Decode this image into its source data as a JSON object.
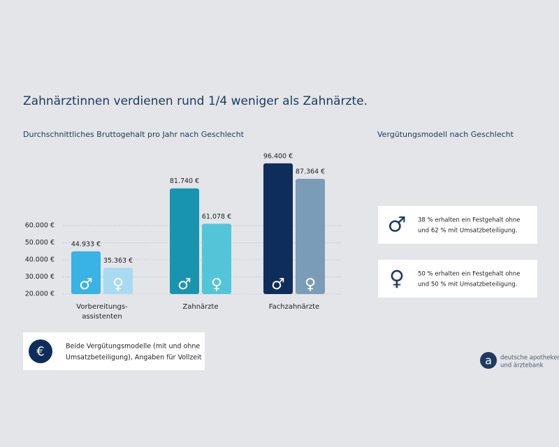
{
  "chart_data": {
    "type": "bar",
    "title": "Zahnärztinnen verdienen rund 1/4 weniger als Zahnärzte.",
    "subtitle": "Durchschnittliches Bruttogehalt pro Jahr nach Geschlecht",
    "categories": [
      "Vorbereitungs-\nassistenten",
      "Zahnärzte",
      "Fachzahnärzte"
    ],
    "series": [
      {
        "name": "♂",
        "colors": [
          "#39b2e6",
          "#1894b0",
          "#0f2d5a"
        ],
        "values": [
          44933,
          81740,
          96400
        ],
        "value_labels": [
          "44.933 €",
          "81.740 €",
          "96.400 €"
        ]
      },
      {
        "name": "♀",
        "colors": [
          "#a8dbf2",
          "#52c6d8",
          "#7b9cb8"
        ],
        "values": [
          35363,
          61078,
          87364
        ],
        "value_labels": [
          "35.363 €",
          "61.078 €",
          "87.364 €"
        ]
      }
    ],
    "ylim": [
      20000,
      100000
    ],
    "yticks": [
      {
        "value": 20000,
        "label": "20.000 €"
      },
      {
        "value": 30000,
        "label": "30.000 €"
      },
      {
        "value": 40000,
        "label": "40.000 €"
      },
      {
        "value": 50000,
        "label": "50.000 €"
      },
      {
        "value": 60000,
        "label": "60.000 €"
      }
    ],
    "grid": true
  },
  "note": {
    "icon": "€",
    "lines": [
      "Beide Vergütungsmodelle (mit und ohne",
      "Umsatzbeteiligung), Angaben für Vollzeit"
    ]
  },
  "side": {
    "title": "Vergütungsmodell nach Geschlecht",
    "panels": [
      {
        "lines": [
          "38 % erhalten ein Festgehalt ohne",
          "und 62 % mit Umsatzbeteiligung."
        ]
      },
      {
        "lines": [
          "50 % erhalten ein Festgehalt ohne",
          "und 50 % mit Umsatzbeteiligung."
        ]
      }
    ]
  },
  "logo": {
    "mark": "a",
    "lines": [
      "deutsche apotheker-",
      "und ärztebank"
    ]
  }
}
